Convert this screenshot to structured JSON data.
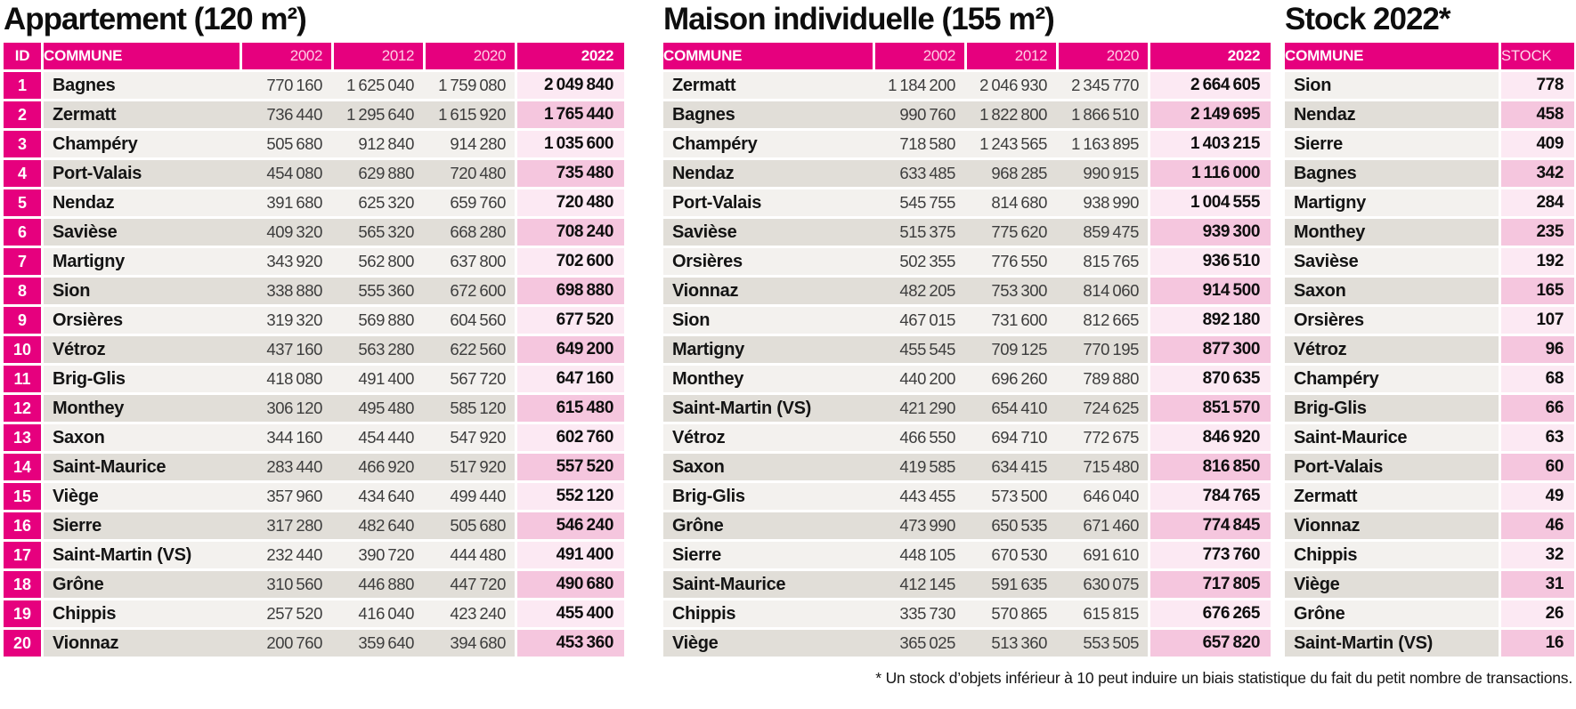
{
  "footnote": "* Un stock d’objets inférieur à 10 peut induire un biais statistique du fait du petit nombre de transactions.",
  "colors": {
    "accent_magenta": "#e6007e",
    "row_light": "#f3f1ee",
    "row_dark": "#e1ded8",
    "pink_light": "#fce9f3",
    "pink_dark": "#f5c6de",
    "number_gray": "#3d3d3d",
    "text_black": "#0e0e0e",
    "year_header_pink": "#ffcde5"
  },
  "chart_data": [
    {
      "type": "table",
      "title": "Appartement (120 m²)",
      "columns": [
        "ID",
        "COMMUNE",
        "2002",
        "2012",
        "2020",
        "2022"
      ],
      "rows": [
        [
          1,
          "Bagnes",
          770160,
          1625040,
          1759080,
          2049840
        ],
        [
          2,
          "Zermatt",
          736440,
          1295640,
          1615920,
          1765440
        ],
        [
          3,
          "Champéry",
          505680,
          912840,
          914280,
          1035600
        ],
        [
          4,
          "Port-Valais",
          454080,
          629880,
          720480,
          735480
        ],
        [
          5,
          "Nendaz",
          391680,
          625320,
          659760,
          720480
        ],
        [
          6,
          "Savièse",
          409320,
          565320,
          668280,
          708240
        ],
        [
          7,
          "Martigny",
          343920,
          562800,
          637800,
          702600
        ],
        [
          8,
          "Sion",
          338880,
          555360,
          672600,
          698880
        ],
        [
          9,
          "Orsières",
          319320,
          569880,
          604560,
          677520
        ],
        [
          10,
          "Vétroz",
          437160,
          563280,
          622560,
          649200
        ],
        [
          11,
          "Brig-Glis",
          418080,
          491400,
          567720,
          647160
        ],
        [
          12,
          "Monthey",
          306120,
          495480,
          585120,
          615480
        ],
        [
          13,
          "Saxon",
          344160,
          454440,
          547920,
          602760
        ],
        [
          14,
          "Saint-Maurice",
          283440,
          466920,
          517920,
          557520
        ],
        [
          15,
          "Viège",
          357960,
          434640,
          499440,
          552120
        ],
        [
          16,
          "Sierre",
          317280,
          482640,
          505680,
          546240
        ],
        [
          17,
          "Saint-Martin (VS)",
          232440,
          390720,
          444480,
          491400
        ],
        [
          18,
          "Grône",
          310560,
          446880,
          447720,
          490680
        ],
        [
          19,
          "Chippis",
          257520,
          416040,
          423240,
          455400
        ],
        [
          20,
          "Vionnaz",
          200760,
          359640,
          394680,
          453360
        ]
      ]
    },
    {
      "type": "table",
      "title": "Maison individuelle (155 m²)",
      "columns": [
        "COMMUNE",
        "2002",
        "2012",
        "2020",
        "2022"
      ],
      "rows": [
        [
          "Zermatt",
          1184200,
          2046930,
          2345770,
          2664605
        ],
        [
          "Bagnes",
          990760,
          1822800,
          1866510,
          2149695
        ],
        [
          "Champéry",
          718580,
          1243565,
          1163895,
          1403215
        ],
        [
          "Nendaz",
          633485,
          968285,
          990915,
          1116000
        ],
        [
          "Port-Valais",
          545755,
          814680,
          938990,
          1004555
        ],
        [
          "Savièse",
          515375,
          775620,
          859475,
          939300
        ],
        [
          "Orsières",
          502355,
          776550,
          815765,
          936510
        ],
        [
          "Vionnaz",
          482205,
          753300,
          814060,
          914500
        ],
        [
          "Sion",
          467015,
          731600,
          812665,
          892180
        ],
        [
          "Martigny",
          455545,
          709125,
          770195,
          877300
        ],
        [
          "Monthey",
          440200,
          696260,
          789880,
          870635
        ],
        [
          "Saint-Martin (VS)",
          421290,
          654410,
          724625,
          851570
        ],
        [
          "Vétroz",
          466550,
          694710,
          772675,
          846920
        ],
        [
          "Saxon",
          419585,
          634415,
          715480,
          816850
        ],
        [
          "Brig-Glis",
          443455,
          573500,
          646040,
          784765
        ],
        [
          "Grône",
          473990,
          650535,
          671460,
          774845
        ],
        [
          "Sierre",
          448105,
          670530,
          691610,
          773760
        ],
        [
          "Saint-Maurice",
          412145,
          591635,
          630075,
          717805
        ],
        [
          "Chippis",
          335730,
          570865,
          615815,
          676265
        ],
        [
          "Viège",
          365025,
          513360,
          553505,
          657820
        ]
      ]
    },
    {
      "type": "table",
      "title": "Stock 2022*",
      "columns": [
        "COMMUNE",
        "STOCK"
      ],
      "rows": [
        [
          "Sion",
          778
        ],
        [
          "Nendaz",
          458
        ],
        [
          "Sierre",
          409
        ],
        [
          "Bagnes",
          342
        ],
        [
          "Martigny",
          284
        ],
        [
          "Monthey",
          235
        ],
        [
          "Savièse",
          192
        ],
        [
          "Saxon",
          165
        ],
        [
          "Orsières",
          107
        ],
        [
          "Vétroz",
          96
        ],
        [
          "Champéry",
          68
        ],
        [
          "Brig-Glis",
          66
        ],
        [
          "Saint-Maurice",
          63
        ],
        [
          "Port-Valais",
          60
        ],
        [
          "Zermatt",
          49
        ],
        [
          "Vionnaz",
          46
        ],
        [
          "Chippis",
          32
        ],
        [
          "Viège",
          31
        ],
        [
          "Grône",
          26
        ],
        [
          "Saint-Martin (VS)",
          16
        ]
      ]
    }
  ]
}
